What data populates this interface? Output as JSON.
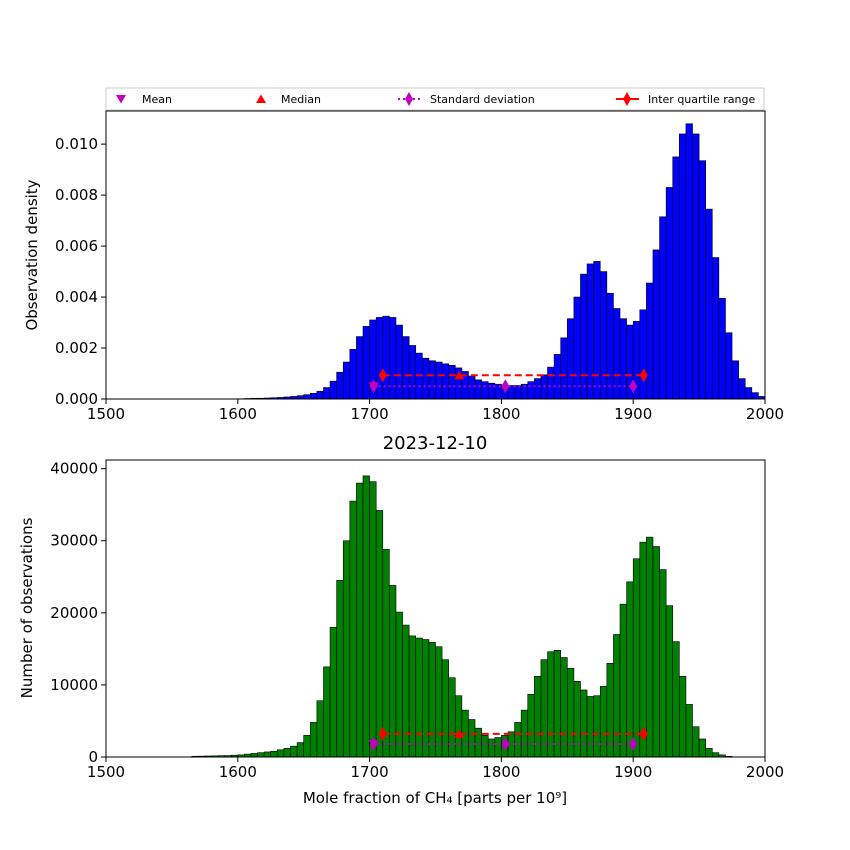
{
  "chart_data": [
    {
      "type": "bar",
      "panel": "top",
      "title": "",
      "xlabel": "",
      "ylabel": "Observation density",
      "xlim": [
        1500,
        2000
      ],
      "ylim": [
        0,
        0.0113
      ],
      "xticks": [
        1500,
        1600,
        1700,
        1800,
        1900,
        2000
      ],
      "yticks": [
        0.0,
        0.002,
        0.004,
        0.006,
        0.008,
        0.01
      ],
      "ytick_labels": [
        "0.000",
        "0.002",
        "0.004",
        "0.006",
        "0.008",
        "0.010"
      ],
      "bin_start": 1600,
      "bin_width": 5,
      "bar_color": "#0000ff",
      "values": [
        1e-05,
        2e-05,
        3e-05,
        3e-05,
        4e-05,
        5e-05,
        6e-05,
        8e-05,
        0.0001,
        0.00013,
        0.00017,
        0.00022,
        0.0003,
        0.00045,
        0.0007,
        0.00105,
        0.00145,
        0.00195,
        0.00245,
        0.00285,
        0.0031,
        0.0032,
        0.00325,
        0.0032,
        0.0029,
        0.00245,
        0.0021,
        0.0018,
        0.0016,
        0.0015,
        0.00145,
        0.00138,
        0.00132,
        0.00122,
        0.00108,
        0.0009,
        0.00075,
        0.00068,
        0.00062,
        0.00058,
        0.00055,
        0.00053,
        0.00053,
        0.00058,
        0.00068,
        0.0008,
        0.00095,
        0.00125,
        0.00175,
        0.0024,
        0.00315,
        0.004,
        0.0049,
        0.0053,
        0.0054,
        0.005,
        0.00415,
        0.00355,
        0.00315,
        0.0029,
        0.00305,
        0.0035,
        0.00455,
        0.00585,
        0.00715,
        0.0083,
        0.0095,
        0.0104,
        0.0108,
        0.0104,
        0.00935,
        0.00745,
        0.00555,
        0.00395,
        0.0026,
        0.0015,
        0.0008,
        0.00045,
        0.00025,
        0.0001
      ],
      "markers": {
        "mean": {
          "x": 1703,
          "y": 0.0005
        },
        "median": {
          "x": 1768,
          "y": 0.00093
        },
        "std": {
          "x": [
            1703,
            1803,
            1900
          ],
          "y": 0.0005
        },
        "iqr": {
          "x": [
            1710,
            1908
          ],
          "y": 0.00093
        }
      }
    },
    {
      "type": "bar",
      "panel": "bottom",
      "title": "2023-12-10",
      "xlabel": "Mole fraction of CH₄ [parts per 10⁹]",
      "ylabel": "Number of observations",
      "xlim": [
        1500,
        2000
      ],
      "ylim": [
        0,
        41200
      ],
      "xticks": [
        1500,
        1600,
        1700,
        1800,
        1900,
        2000
      ],
      "yticks": [
        0,
        10000,
        20000,
        30000,
        40000
      ],
      "ytick_labels": [
        "0",
        "10000",
        "20000",
        "30000",
        "40000"
      ],
      "bin_start": 1565,
      "bin_width": 5,
      "bar_color": "#008000",
      "values": [
        100,
        120,
        140,
        160,
        180,
        200,
        250,
        300,
        400,
        500,
        600,
        700,
        800,
        1000,
        1200,
        1500,
        2000,
        3000,
        4800,
        7800,
        12500,
        18000,
        24500,
        30000,
        35500,
        38000,
        39000,
        38200,
        34200,
        28800,
        23800,
        20100,
        18300,
        16800,
        16500,
        16300,
        15900,
        15300,
        13500,
        11000,
        8500,
        6500,
        5200,
        4000,
        3000,
        2500,
        2700,
        3000,
        3500,
        4800,
        6500,
        8700,
        11200,
        13500,
        14600,
        14800,
        13800,
        12300,
        10500,
        9300,
        8400,
        8500,
        9800,
        13000,
        17000,
        21200,
        24300,
        27500,
        29800,
        30500,
        29200,
        26000,
        21000,
        16000,
        11200,
        7300,
        4200,
        2500,
        1200,
        600,
        300,
        100
      ],
      "markers": {
        "mean": {
          "x": 1703,
          "y": 1800
        },
        "median": {
          "x": 1768,
          "y": 3200
        },
        "std": {
          "x": [
            1703,
            1803,
            1900
          ],
          "y": 1800
        },
        "iqr": {
          "x": [
            1710,
            1908
          ],
          "y": 3200
        }
      }
    }
  ],
  "legend": {
    "mean": "Mean",
    "median": "Median",
    "std": "Standard deviation",
    "iqr": "Inter quartile range"
  },
  "colors": {
    "mean": "#bf00bf",
    "median": "#ff0000",
    "std": "#bf00bf",
    "iqr": "#ff0000",
    "bar_edge": "#000000"
  }
}
